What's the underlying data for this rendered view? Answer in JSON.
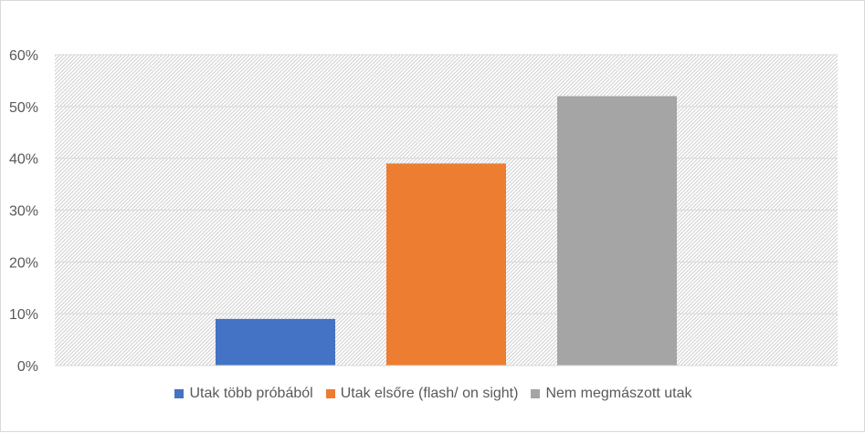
{
  "chart_data": {
    "type": "bar",
    "title": "",
    "xlabel": "",
    "ylabel": "",
    "ylim": [
      0,
      0.6
    ],
    "yticks": [
      0,
      0.1,
      0.2,
      0.3,
      0.4,
      0.5,
      0.6
    ],
    "ytick_labels": [
      "0%",
      "10%",
      "20%",
      "30%",
      "40%",
      "50%",
      "60%"
    ],
    "grid": true,
    "legend_position": "bottom",
    "series": [
      {
        "name": "Utak több próbából",
        "value": 0.09,
        "color": "#4472c4"
      },
      {
        "name": "Utak elsőre (flash/ on sight)",
        "value": 0.39,
        "color": "#ed7d31"
      },
      {
        "name": "Nem megmászott utak",
        "value": 0.52,
        "color": "#a5a5a5"
      }
    ]
  }
}
